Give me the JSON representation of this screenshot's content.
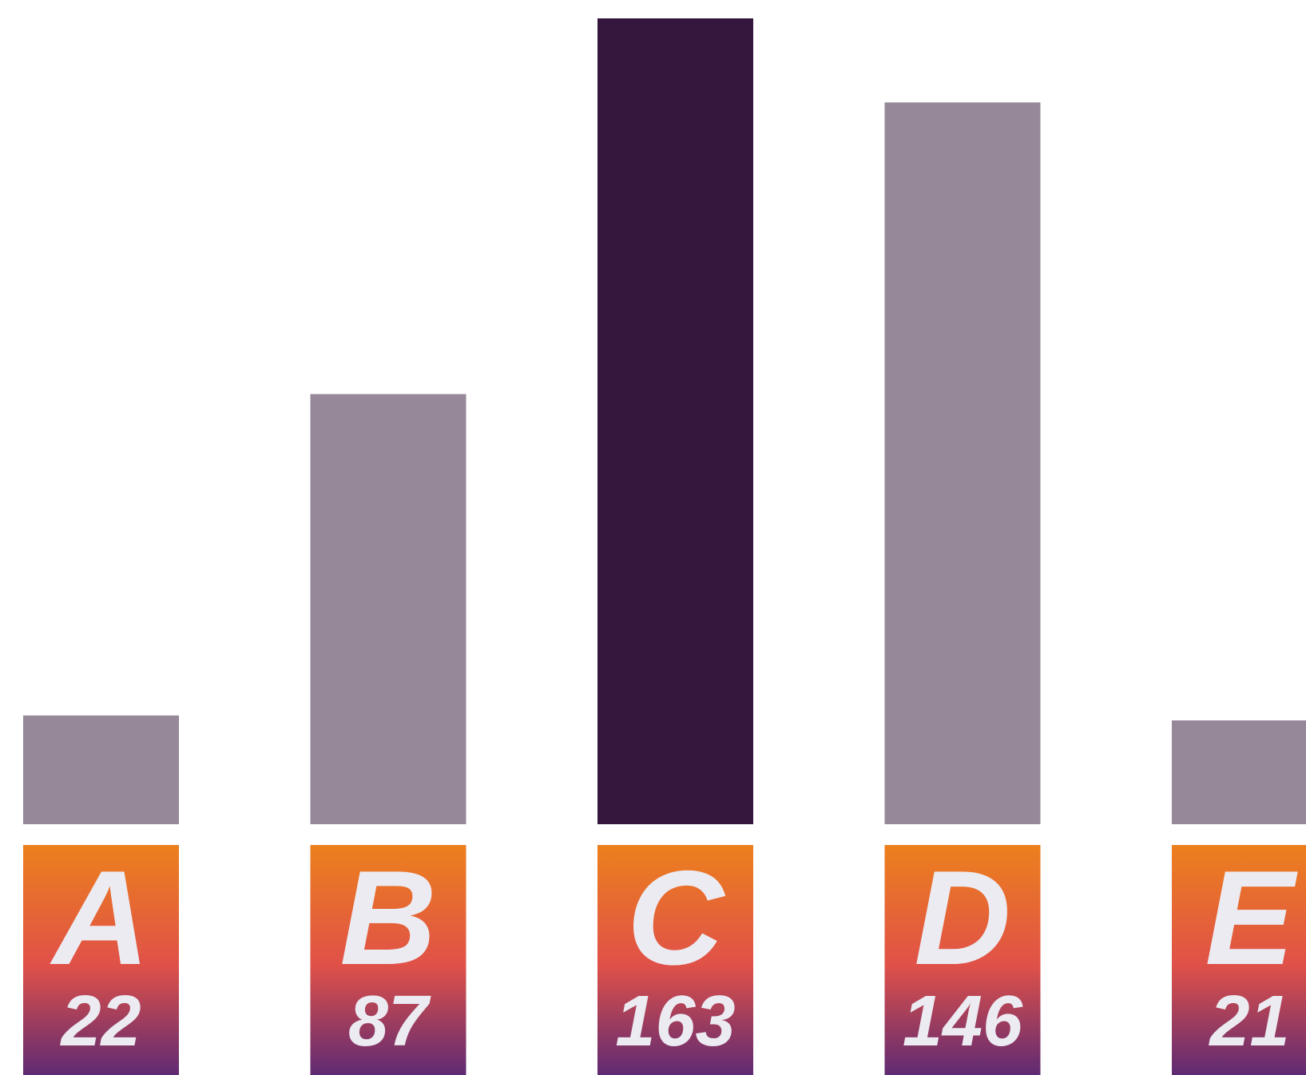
{
  "chart_data": {
    "type": "bar",
    "title": "",
    "xlabel": "",
    "ylabel": "",
    "categories": [
      "A",
      "B",
      "C",
      "D",
      "E"
    ],
    "values": [
      22,
      87,
      163,
      146,
      21
    ],
    "value_labels": [
      "22",
      "87",
      "163",
      "146",
      "21"
    ],
    "highlight_category": "C",
    "ylim": [
      0,
      163
    ],
    "grid": false,
    "legend": "none",
    "colors": {
      "bar": "#968899",
      "bar_highlight": "#35173d",
      "label_gradient_top": "#ec801d",
      "label_gradient_mid": "#e05148",
      "label_gradient_bottom": "#5f2a73",
      "label_text": "#ecebf2"
    }
  }
}
